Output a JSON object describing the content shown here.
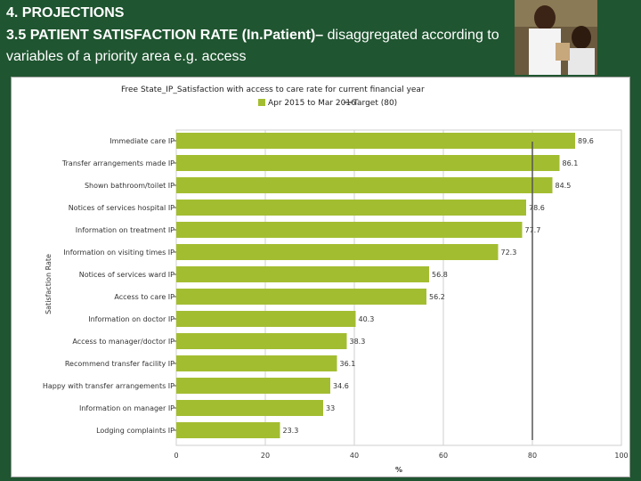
{
  "header": {
    "section": "4. PROJECTIONS",
    "title_bold": "3.5 PATIENT SATISFACTION RATE (In.Patient)–",
    "title_rest": " disaggregated according to",
    "line3": "variables of a priority area e.g. access"
  },
  "chart_data": {
    "type": "bar",
    "orientation": "horizontal",
    "title": "Free State_IP_Satisfaction with access to care rate for current financial year",
    "legend": [
      "Apr 2015 to Mar 2016",
      "Target (80)"
    ],
    "legend_position": "top",
    "xlabel": "%",
    "ylabel": "Satisfaction Rate",
    "xlim": [
      0,
      100
    ],
    "xticks": [
      0,
      20,
      40,
      60,
      80,
      100
    ],
    "grid": true,
    "target": 80,
    "bar_color": "#a3bd31",
    "target_color": "#555555",
    "categories": [
      "Immediate care IP",
      "Transfer arrangements made IP",
      "Shown bathroom/toilet IP",
      "Notices of services hospital IP",
      "Information on treatment IP",
      "Information on visiting times IP",
      "Notices of services ward IP",
      "Access to care IP",
      "Information on doctor IP",
      "Access to manager/doctor IP",
      "Recommend transfer facility IP",
      "Happy with transfer arrangements IP",
      "Information on manager IP",
      "Lodging complaints IP"
    ],
    "values": [
      89.6,
      86.1,
      84.5,
      78.6,
      77.7,
      72.3,
      56.8,
      56.2,
      40.3,
      38.3,
      36.1,
      34.6,
      33,
      23.3
    ]
  }
}
